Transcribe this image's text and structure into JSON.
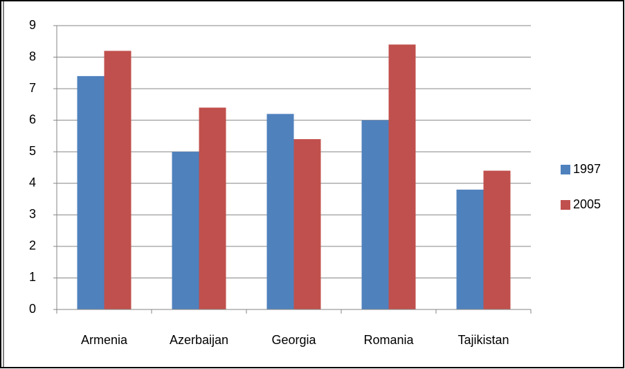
{
  "chart_data": {
    "type": "bar",
    "categories": [
      "Armenia",
      "Azerbaijan",
      "Georgia",
      "Romania",
      "Tajikistan"
    ],
    "series": [
      {
        "name": "1997",
        "color": "#4f81bd",
        "values": [
          7.4,
          5.0,
          6.2,
          6.0,
          3.8
        ]
      },
      {
        "name": "2005",
        "color": "#c0504d",
        "values": [
          8.2,
          6.4,
          5.4,
          8.4,
          4.4
        ]
      }
    ],
    "ylim": [
      0,
      9
    ],
    "yticks": [
      0,
      1,
      2,
      3,
      4,
      5,
      6,
      7,
      8,
      9
    ],
    "grid": true,
    "legend": "right"
  }
}
